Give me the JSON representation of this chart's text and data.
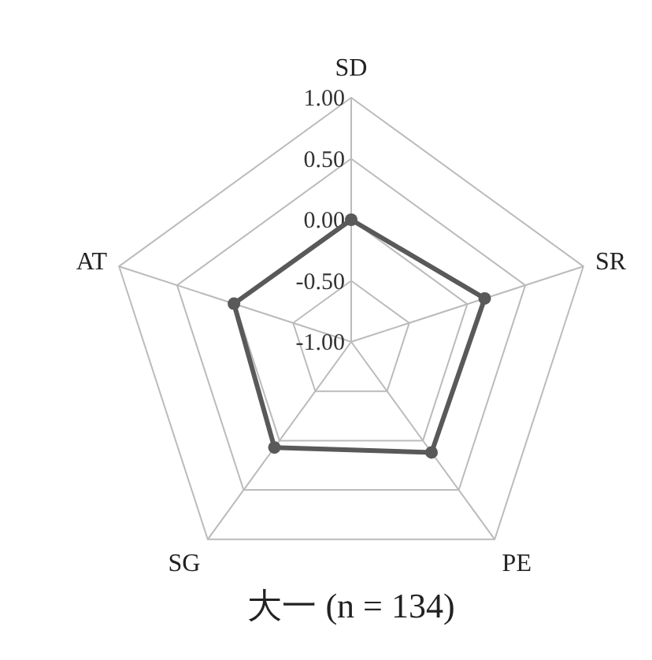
{
  "chart_data": {
    "type": "radar",
    "title": "大一 (n = 134)",
    "categories": [
      "SD",
      "SR",
      "PE",
      "SG",
      "AT"
    ],
    "ylim": [
      -1,
      1
    ],
    "yticks": [
      {
        "value": 1,
        "label": "1.00"
      },
      {
        "value": 0.5,
        "label": "0.50"
      },
      {
        "value": 0,
        "label": "0.00"
      },
      {
        "value": -0.5,
        "label": "-0.50"
      },
      {
        "value": -1,
        "label": "-1.00"
      }
    ],
    "grid": true,
    "marker": "circle",
    "line_style": "solid",
    "series": [
      {
        "color": "#595959",
        "values": [
          0.0,
          0.15,
          0.12,
          0.07,
          0.01
        ]
      }
    ]
  }
}
